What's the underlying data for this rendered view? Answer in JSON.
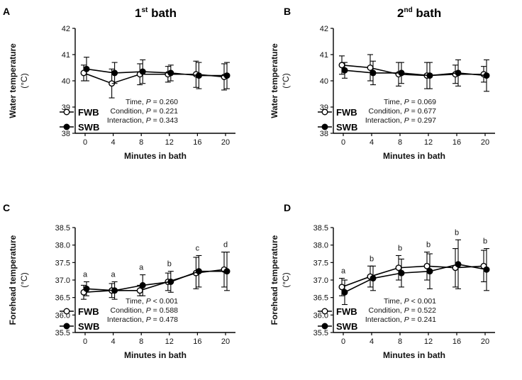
{
  "chart_data": [
    {
      "type": "line",
      "panel_letter": "A",
      "title": {
        "prefix": "1",
        "sup": "st",
        "rest": " bath"
      },
      "xlabel": "Minutes in bath",
      "ylabel_line1": "Water temperature",
      "ylabel_line2": "(°C)",
      "x": [
        0,
        4,
        8,
        12,
        16,
        20
      ],
      "xticks": [
        "0",
        "4",
        "8",
        "12",
        "16",
        "20"
      ],
      "ylim": [
        38,
        42
      ],
      "yticks": [
        "38",
        "39",
        "40",
        "41",
        "42"
      ],
      "series": [
        {
          "name": "FWB",
          "marker": "open",
          "values": [
            40.3,
            39.9,
            40.25,
            40.25,
            40.25,
            40.15
          ],
          "errors": [
            0.3,
            0.55,
            0.4,
            0.3,
            0.5,
            0.5
          ]
        },
        {
          "name": "SWB",
          "marker": "filled",
          "values": [
            40.45,
            40.3,
            40.35,
            40.3,
            40.2,
            40.2
          ],
          "errors": [
            0.45,
            0.4,
            0.45,
            0.3,
            0.5,
            0.5
          ]
        }
      ],
      "stats": [
        "Time, P = 0.260",
        "Condition, P = 0.221",
        "Interaction, P = 0.343"
      ],
      "annotations": []
    },
    {
      "type": "line",
      "panel_letter": "B",
      "title": {
        "prefix": "2",
        "sup": "nd",
        "rest": " bath"
      },
      "xlabel": "Minutes in bath",
      "ylabel_line1": "Water temperature",
      "ylabel_line2": "(°C)",
      "x": [
        0,
        4,
        8,
        12,
        16,
        20
      ],
      "xticks": [
        "0",
        "4",
        "8",
        "12",
        "16",
        "20"
      ],
      "ylim": [
        38,
        42
      ],
      "yticks": [
        "38",
        "39",
        "40",
        "41",
        "42"
      ],
      "series": [
        {
          "name": "FWB",
          "marker": "open",
          "values": [
            40.6,
            40.5,
            40.25,
            40.2,
            40.25,
            40.25
          ],
          "errors": [
            0.35,
            0.5,
            0.45,
            0.5,
            0.35,
            0.3
          ]
        },
        {
          "name": "SWB",
          "marker": "filled",
          "values": [
            40.4,
            40.3,
            40.3,
            40.2,
            40.3,
            40.2
          ],
          "errors": [
            0.3,
            0.45,
            0.4,
            0.5,
            0.5,
            0.6
          ]
        }
      ],
      "stats": [
        "Time, P = 0.069",
        "Condition, P = 0.677",
        "Interaction, P = 0.297"
      ],
      "annotations": []
    },
    {
      "type": "line",
      "panel_letter": "C",
      "title": null,
      "xlabel": "Minutes in bath",
      "ylabel_line1": "Forehead temperature",
      "ylabel_line2": "(°C)",
      "x": [
        0,
        4,
        8,
        12,
        16,
        20
      ],
      "xticks": [
        "0",
        "4",
        "8",
        "12",
        "16",
        "20"
      ],
      "ylim": [
        35.5,
        38.5
      ],
      "yticks": [
        "35.5",
        "36.0",
        "36.5",
        "37.0",
        "37.5",
        "38.0",
        "38.5"
      ],
      "series": [
        {
          "name": "FWB",
          "marker": "open",
          "values": [
            36.65,
            36.7,
            36.7,
            36.95,
            37.2,
            37.3
          ],
          "errors": [
            0.2,
            0.2,
            0.15,
            0.25,
            0.45,
            0.5
          ]
        },
        {
          "name": "SWB",
          "marker": "filled",
          "values": [
            36.75,
            36.7,
            36.85,
            36.95,
            37.25,
            37.25
          ],
          "errors": [
            0.2,
            0.25,
            0.3,
            0.3,
            0.45,
            0.55
          ]
        }
      ],
      "stats": [
        "Time, P < 0.001",
        "Condition, P = 0.588",
        "Interaction, P = 0.478"
      ],
      "annotations": [
        {
          "x": 0,
          "label": "a"
        },
        {
          "x": 4,
          "label": "a"
        },
        {
          "x": 8,
          "label": "a"
        },
        {
          "x": 12,
          "label": "b"
        },
        {
          "x": 16,
          "label": "c"
        },
        {
          "x": 20,
          "label": "d"
        }
      ]
    },
    {
      "type": "line",
      "panel_letter": "D",
      "title": null,
      "xlabel": "Minutes in bath",
      "ylabel_line1": "Forehead temperature",
      "ylabel_line2": "(°C)",
      "x": [
        0,
        4,
        8,
        12,
        16,
        20
      ],
      "xticks": [
        "0",
        "4",
        "8",
        "12",
        "16",
        "20"
      ],
      "ylim": [
        35.5,
        38.5
      ],
      "yticks": [
        "35.5",
        "36.0",
        "36.5",
        "37.0",
        "37.5",
        "38.0",
        "38.5"
      ],
      "series": [
        {
          "name": "FWB",
          "marker": "open",
          "values": [
            36.8,
            37.1,
            37.35,
            37.4,
            37.35,
            37.4
          ],
          "errors": [
            0.25,
            0.3,
            0.35,
            0.4,
            0.55,
            0.45
          ]
        },
        {
          "name": "SWB",
          "marker": "filled",
          "values": [
            36.65,
            37.05,
            37.2,
            37.25,
            37.45,
            37.3
          ],
          "errors": [
            0.35,
            0.35,
            0.4,
            0.5,
            0.7,
            0.6
          ]
        }
      ],
      "stats": [
        "Time, P < 0.001",
        "Condition, P = 0.522",
        "Interaction, P = 0.241"
      ],
      "annotations": [
        {
          "x": 0,
          "label": "a"
        },
        {
          "x": 4,
          "label": "b"
        },
        {
          "x": 8,
          "label": "b"
        },
        {
          "x": 12,
          "label": "b"
        },
        {
          "x": 16,
          "label": "b"
        },
        {
          "x": 20,
          "label": "b"
        }
      ]
    }
  ]
}
